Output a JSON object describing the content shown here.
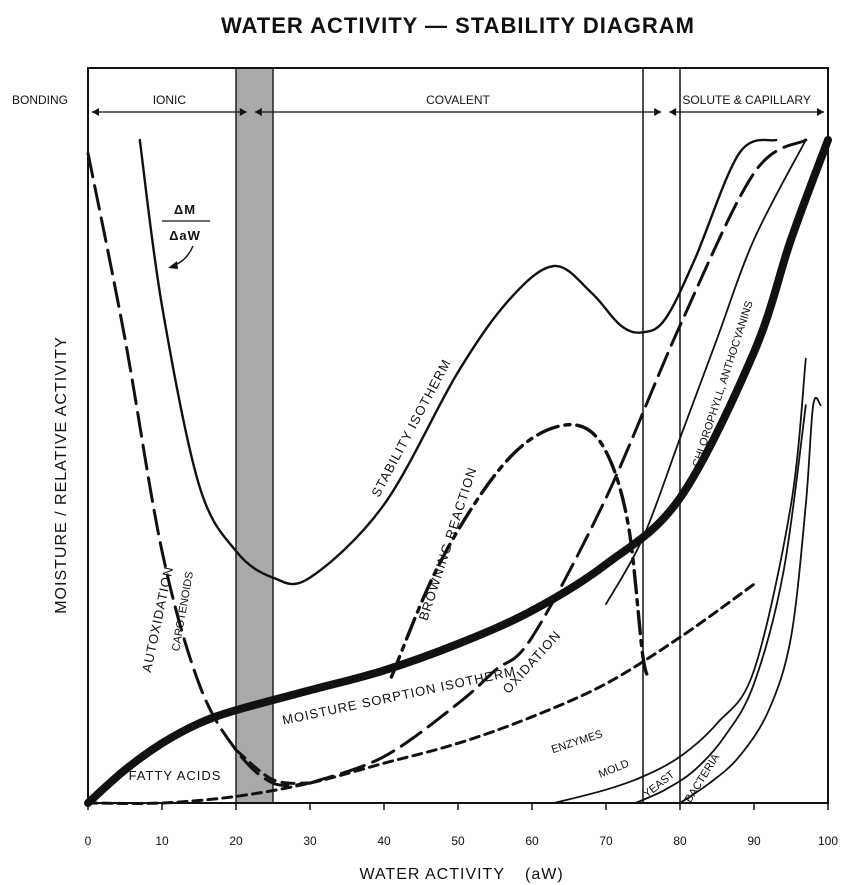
{
  "chart_data": {
    "type": "line",
    "title": "WATER ACTIVITY — STABILITY DIAGRAM",
    "xlabel": "WATER ACTIVITY",
    "xlabel_symbol": "(aW)",
    "ylabel": "MOISTURE / RELATIVE ACTIVITY",
    "xlim": [
      0,
      100
    ],
    "ylim": [
      0,
      100
    ],
    "x_ticks": [
      "0",
      "10",
      "20",
      "30",
      "40",
      "50",
      "60",
      "70",
      "80",
      "90",
      "100"
    ],
    "bonding_label": "BONDING",
    "bonding_zones": [
      {
        "name": "IONIC",
        "x": [
          0,
          22
        ]
      },
      {
        "name": "COVALENT",
        "x": [
          22,
          78
        ]
      },
      {
        "name": "SOLUTE & CAPILLARY",
        "x": [
          78,
          100
        ]
      }
    ],
    "shaded_band": [
      20,
      25
    ],
    "vertical_lines": [
      75,
      80
    ],
    "derivative_label": {
      "numerator": "ΔM",
      "denominator": "ΔaW"
    },
    "series": [
      {
        "name": "STABILITY ISOTHERM",
        "style": "solid",
        "x": [
          7,
          10,
          15,
          20,
          25,
          30,
          40,
          50,
          57,
          63,
          68,
          72,
          75,
          78,
          82,
          88,
          93
        ],
        "y": [
          100,
          75,
          48,
          38,
          34,
          34,
          45,
          65,
          76,
          81,
          77,
          72,
          71,
          73,
          82,
          98,
          100
        ]
      },
      {
        "name": "MOISTURE SORPTION ISOTHERM",
        "style": "bold",
        "x": [
          0,
          5,
          10,
          15,
          20,
          30,
          40,
          50,
          60,
          70,
          80,
          90,
          95,
          100
        ],
        "y": [
          0,
          5,
          9,
          12,
          14,
          17,
          20,
          24,
          29,
          36,
          46,
          68,
          85,
          100
        ]
      },
      {
        "name": "AUTOXIDATION CAROTENOIDS",
        "style": "long-dash",
        "x": [
          0,
          5,
          10,
          15,
          20,
          25,
          30
        ],
        "y": [
          98,
          70,
          38,
          18,
          8,
          3,
          3
        ]
      },
      {
        "name": "FATTY ACIDS",
        "style": "dash",
        "x": [
          20,
          25,
          30
        ],
        "y": [
          8,
          3.5,
          3
        ]
      },
      {
        "name": "BROWNING REACTION",
        "style": "dash-dot",
        "x": [
          41,
          47,
          54,
          60,
          66,
          70,
          73,
          75,
          76
        ],
        "y": [
          19,
          35,
          48,
          55,
          57,
          53,
          42,
          22,
          19
        ]
      },
      {
        "name": "OXIDATION",
        "style": "long-dash",
        "x": [
          30,
          40,
          50,
          55,
          60,
          70,
          80,
          90,
          97
        ],
        "y": [
          3,
          7,
          15,
          20,
          25,
          46,
          72,
          95,
          100
        ]
      },
      {
        "name": "CHLOROPHYLL, ANTHOCYANINS",
        "style": "solid-thin",
        "x": [
          70,
          75,
          80,
          85,
          90,
          97
        ],
        "y": [
          30,
          40,
          55,
          70,
          85,
          100
        ]
      },
      {
        "name": "ENZYMES",
        "style": "short-dash",
        "x": [
          0,
          10,
          20,
          30,
          40,
          50,
          60,
          70,
          80,
          90
        ],
        "y": [
          0,
          0,
          1,
          3,
          6,
          9,
          13,
          18,
          25,
          33
        ]
      },
      {
        "name": "MOLD",
        "style": "solid-thin",
        "x": [
          63,
          70,
          75,
          80,
          85,
          90,
          95,
          97
        ],
        "y": [
          0,
          2,
          4,
          7,
          12,
          20,
          45,
          67
        ]
      },
      {
        "name": "YEAST",
        "style": "solid-thin",
        "x": [
          74,
          78,
          82,
          86,
          90,
          94,
          97
        ],
        "y": [
          0,
          2,
          5,
          10,
          18,
          35,
          60
        ]
      },
      {
        "name": "BACTERIA",
        "style": "solid-thin",
        "x": [
          80,
          84,
          88,
          92,
          95,
          97,
          98,
          99
        ],
        "y": [
          0,
          3,
          7,
          14,
          25,
          45,
          60,
          60
        ]
      }
    ]
  }
}
